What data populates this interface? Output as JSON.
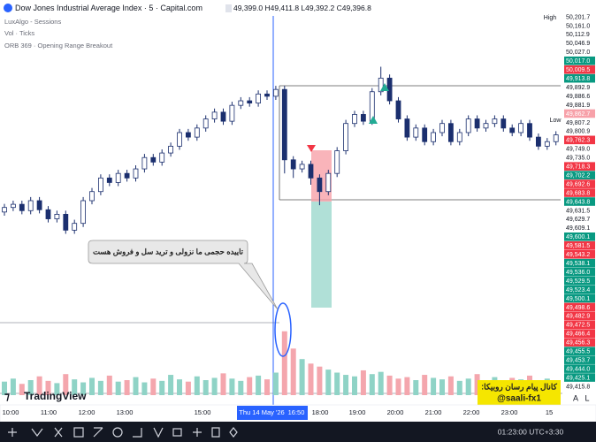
{
  "header": {
    "title": "Dow Jones Industrial Average Index · 5 · Capital.com",
    "ohlc": "49,399.0 H49,411.8 L49,392.2 C49,396.8"
  },
  "indicators": [
    "LuxAlgo - Sessions",
    "Vol · Ticks",
    "ORB 369 · Opening Range Breakout"
  ],
  "price_scale": {
    "high": "High",
    "low": "Low",
    "labels": [
      {
        "label": "50,201.7",
        "color": "#ffffff"
      },
      {
        "label": "50,161.0",
        "color": "#ffffff"
      },
      {
        "label": "50,112.9",
        "color": "#ffffff"
      },
      {
        "label": "50,046.9",
        "color": "#ffffff"
      },
      {
        "label": "50,027.0",
        "color": "#ffffff"
      },
      {
        "label": "50,017.0",
        "color": "#089981"
      },
      {
        "label": "50,009.5",
        "color": "#f23645"
      },
      {
        "label": "49,913.8",
        "color": "#089981"
      },
      {
        "label": "49,892.9",
        "color": "#ffffff"
      },
      {
        "label": "49,886.6",
        "color": "#ffffff"
      },
      {
        "label": "49,881.9",
        "color": "#ffffff"
      },
      {
        "label": "49,862.7",
        "color": "#f7a1a9"
      },
      {
        "label": "49,807.2",
        "color": "#ffffff"
      },
      {
        "label": "49,800.9",
        "color": "#ffffff"
      },
      {
        "label": "49,762.3",
        "color": "#f23645"
      },
      {
        "label": "49,749.0",
        "color": "#ffffff"
      },
      {
        "label": "49,735.0",
        "color": "#ffffff"
      },
      {
        "label": "49,718.3",
        "color": "#f23645"
      },
      {
        "label": "49,702.2",
        "color": "#089981"
      },
      {
        "label": "49,692.6",
        "color": "#f23645"
      },
      {
        "label": "49,683.8",
        "color": "#f23645"
      },
      {
        "label": "49,643.8",
        "color": "#089981"
      },
      {
        "label": "49,631.5",
        "color": "#ffffff"
      },
      {
        "label": "49,629.7",
        "color": "#ffffff"
      },
      {
        "label": "49,609.1",
        "color": "#ffffff"
      },
      {
        "label": "49,600.1",
        "color": "#089981"
      },
      {
        "label": "49,581.5",
        "color": "#f23645"
      },
      {
        "label": "49,543.2",
        "color": "#f23645"
      },
      {
        "label": "49,538.1",
        "color": "#089981"
      },
      {
        "label": "49,536.0",
        "color": "#089981"
      },
      {
        "label": "49,529.5",
        "color": "#089981"
      },
      {
        "label": "49,523.4",
        "color": "#089981"
      },
      {
        "label": "49,500.1",
        "color": "#089981"
      },
      {
        "label": "49,498.6",
        "color": "#f23645"
      },
      {
        "label": "49,482.9",
        "color": "#f23645"
      },
      {
        "label": "49,472.5",
        "color": "#f23645"
      },
      {
        "label": "49,466.4",
        "color": "#f23645"
      },
      {
        "label": "49,456.3",
        "color": "#f23645"
      },
      {
        "label": "49,455.5",
        "color": "#089981"
      },
      {
        "label": "49,453.7",
        "color": "#089981"
      },
      {
        "label": "49,444.0",
        "color": "#089981"
      },
      {
        "label": "49,425.1",
        "color": "#089981"
      },
      {
        "label": "49,415.8",
        "color": "#ffffff"
      }
    ]
  },
  "time_axis": [
    "10:00",
    "11:00",
    "12:00",
    "13:00",
    "15:00",
    "Thu 14 May '26",
    "16:50",
    "18:00",
    "19:00",
    "20:00",
    "21:00",
    "22:00",
    "23:00",
    "15"
  ],
  "annotation": "تاییده حجمی ما  نزولی و ترید سل و فروش هست",
  "promo": {
    "line1": "کانال پیام رسان روبیکا:",
    "line2": "@saali-fx1"
  },
  "brand": "TradingView",
  "status": {
    "clock": "01:23:00 UTC+3:30",
    "buttons": [
      "A",
      "L"
    ]
  },
  "candles": {
    "ylim": [
      49196,
      50047
    ],
    "up_color": "#ffffff",
    "down_color": "#1b2f6e",
    "open": [
      49615,
      49625,
      49632,
      49618,
      49640,
      49620,
      49600,
      49610,
      49575,
      49590,
      49640,
      49660,
      49690,
      49680,
      49700,
      49690,
      49710,
      49735,
      49725,
      49745,
      49760,
      49790,
      49780,
      49800,
      49820,
      49835,
      49815,
      49850,
      49860,
      49855,
      49875,
      49870,
      49885,
      49730,
      49710,
      49720,
      49690,
      49660,
      49700,
      49750,
      49810,
      49830,
      49815,
      49880,
      49910,
      49860,
      49820,
      49780,
      49800,
      49770,
      49790,
      49810,
      49770,
      49790,
      49820,
      49800,
      49810,
      49820,
      49800,
      49790,
      49810,
      49780,
      49760,
      49770
    ],
    "high": [
      49633,
      49640,
      49640,
      49648,
      49648,
      49628,
      49618,
      49618,
      49598,
      49648,
      49668,
      49698,
      49698,
      49708,
      49708,
      49718,
      49743,
      49743,
      49753,
      49768,
      49798,
      49798,
      49808,
      49828,
      49843,
      49843,
      49858,
      49868,
      49868,
      49883,
      49883,
      49893,
      49893,
      49738,
      49728,
      49728,
      49698,
      49708,
      49758,
      49818,
      49838,
      49838,
      49888,
      49935,
      49918,
      49868,
      49828,
      49808,
      49808,
      49798,
      49818,
      49818,
      49798,
      49828,
      49828,
      49818,
      49828,
      49828,
      49808,
      49818,
      49818,
      49788,
      49778,
      49793
    ],
    "low": [
      49607,
      49617,
      49610,
      49610,
      49612,
      49592,
      49592,
      49567,
      49567,
      49582,
      49632,
      49652,
      49672,
      49672,
      49682,
      49682,
      49702,
      49717,
      49717,
      49737,
      49752,
      49772,
      49772,
      49792,
      49812,
      49807,
      49807,
      49842,
      49847,
      49847,
      49862,
      49862,
      49700,
      49690,
      49702,
      49675,
      49630,
      49652,
      49692,
      49742,
      49802,
      49807,
      49807,
      49872,
      49852,
      49812,
      49772,
      49772,
      49762,
      49762,
      49782,
      49762,
      49762,
      49782,
      49792,
      49792,
      49802,
      49792,
      49782,
      49782,
      49772,
      49752,
      49752,
      49762
    ],
    "close": [
      49625,
      49632,
      49618,
      49640,
      49620,
      49600,
      49610,
      49575,
      49590,
      49640,
      49660,
      49690,
      49680,
      49700,
      49690,
      49710,
      49735,
      49725,
      49745,
      49760,
      49790,
      49780,
      49800,
      49820,
      49835,
      49815,
      49850,
      49860,
      49855,
      49875,
      49870,
      49885,
      49730,
      49710,
      49720,
      49690,
      49660,
      49700,
      49750,
      49810,
      49830,
      49815,
      49880,
      49910,
      49860,
      49820,
      49780,
      49800,
      49770,
      49790,
      49810,
      49770,
      49790,
      49820,
      49800,
      49810,
      49820,
      49800,
      49790,
      49810,
      49780,
      49760,
      49770,
      49785
    ]
  },
  "volume": {
    "ylim": [
      0,
      100
    ],
    "up_color": "#8fd3c6",
    "down_color": "#f4a6ad",
    "values": [
      18,
      22,
      15,
      20,
      25,
      19,
      16,
      28,
      21,
      17,
      23,
      19,
      26,
      18,
      20,
      24,
      17,
      22,
      19,
      27,
      21,
      18,
      25,
      20,
      23,
      29,
      22,
      19,
      24,
      26,
      21,
      30,
      85,
      62,
      48,
      42,
      38,
      34,
      30,
      27,
      25,
      33,
      28,
      31,
      26,
      22,
      24,
      20,
      27,
      23,
      21,
      25,
      19,
      22,
      28,
      20,
      24,
      18,
      23,
      21,
      26,
      19,
      22,
      17
    ]
  }
}
